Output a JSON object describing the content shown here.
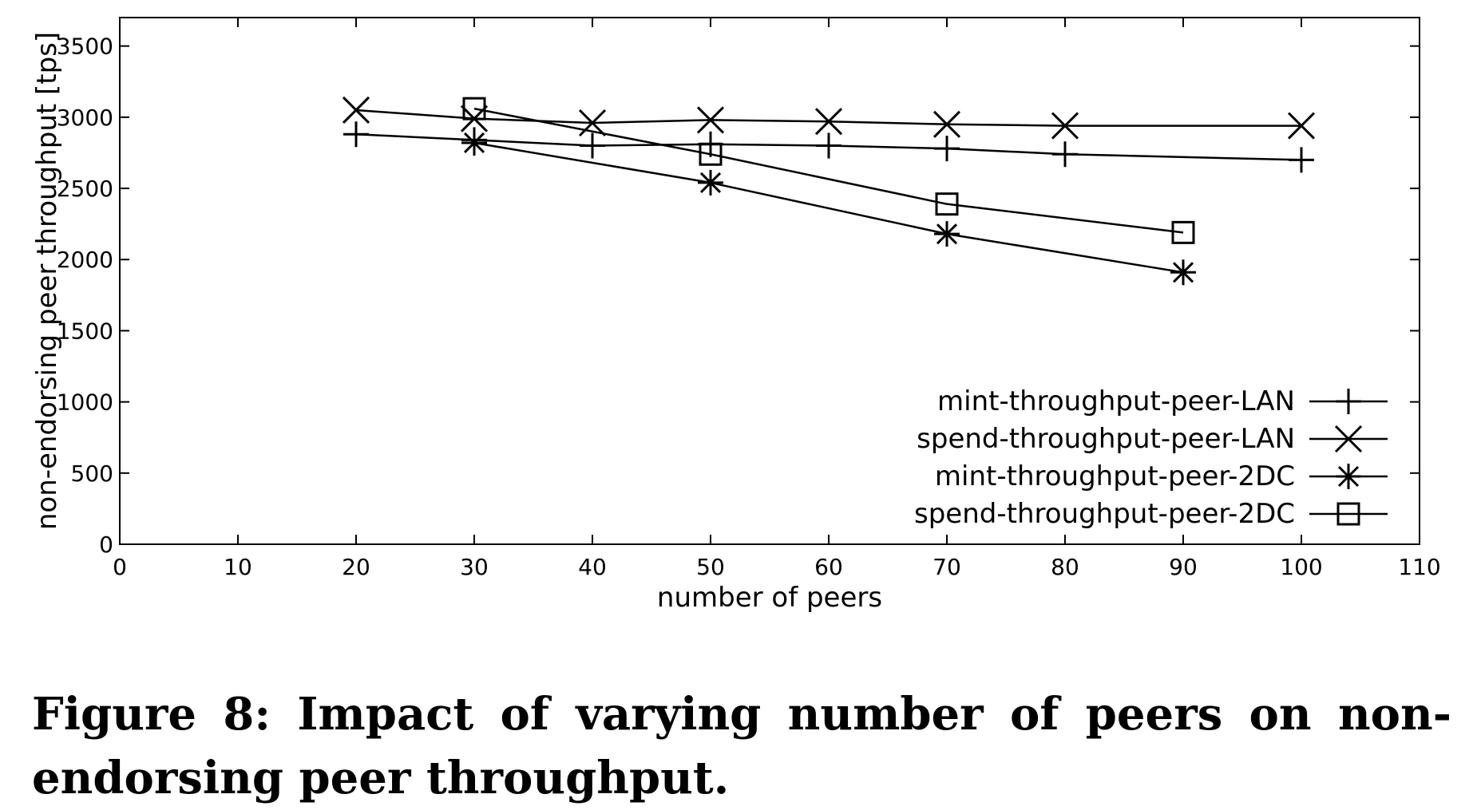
{
  "chart_data": {
    "type": "line",
    "xlabel": "number of peers",
    "ylabel": "non-endorsing peer throughput [tps]",
    "xlim": [
      0,
      110
    ],
    "ylim": [
      0,
      3700
    ],
    "xticks": [
      0,
      10,
      20,
      30,
      40,
      50,
      60,
      70,
      80,
      90,
      100,
      110
    ],
    "yticks": [
      0,
      500,
      1000,
      1500,
      2000,
      2500,
      3000,
      3500
    ],
    "grid": false,
    "legend_position": "bottom-right",
    "series": [
      {
        "name": "mint-throughput-peer-LAN",
        "marker": "plus",
        "x": [
          20,
          30,
          40,
          50,
          60,
          70,
          80,
          100
        ],
        "y": [
          2880,
          2840,
          2800,
          2810,
          2800,
          2780,
          2740,
          2700
        ]
      },
      {
        "name": "spend-throughput-peer-LAN",
        "marker": "cross",
        "x": [
          20,
          30,
          40,
          50,
          60,
          70,
          80,
          100
        ],
        "y": [
          3050,
          2990,
          2960,
          2980,
          2970,
          2950,
          2940,
          2940
        ]
      },
      {
        "name": "mint-throughput-peer-2DC",
        "marker": "star",
        "x": [
          30,
          50,
          70,
          90
        ],
        "y": [
          2820,
          2540,
          2180,
          1910
        ]
      },
      {
        "name": "spend-throughput-peer-2DC",
        "marker": "square",
        "x": [
          30,
          50,
          70,
          90
        ],
        "y": [
          3060,
          2740,
          2390,
          2190
        ]
      }
    ]
  },
  "caption": {
    "line1": "Figure 8: Impact of varying number of peers on non-",
    "line2": "endorsing peer throughput."
  }
}
